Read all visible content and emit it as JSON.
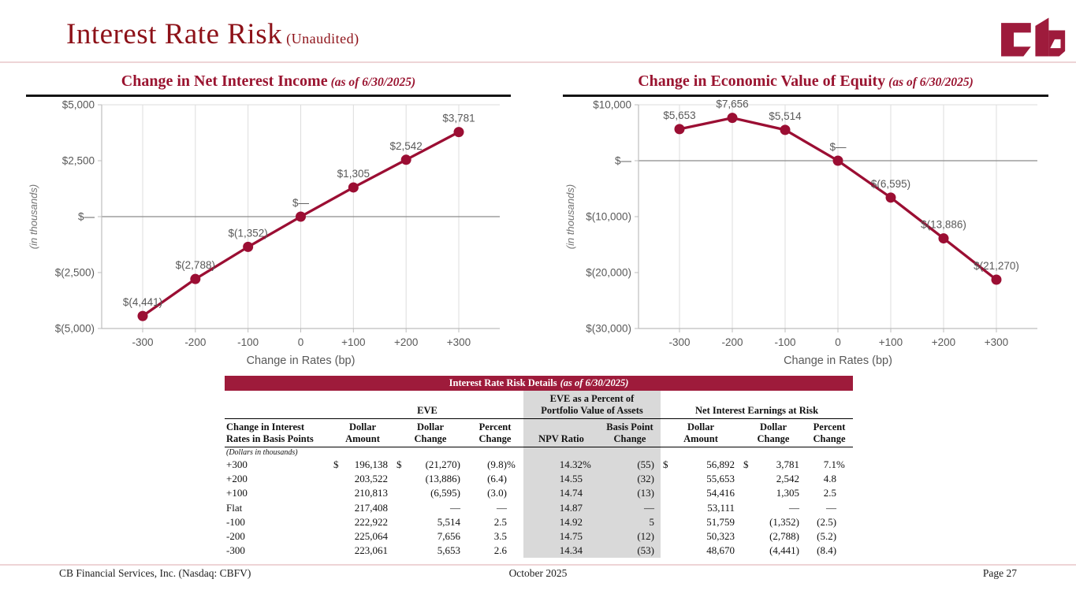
{
  "page": {
    "title": "Interest Rate Risk",
    "title_suffix": "(Unaudited)",
    "logo_name": "cb-monogram"
  },
  "colors": {
    "crimson_line": "#9b0e33",
    "title_red": "#8d1118",
    "chart_title_red": "#9a1430",
    "banner_red": "#9e1b3b",
    "shade_gray": "#d9d9d9",
    "label_gray": "#595959"
  },
  "chart_data": [
    {
      "type": "line",
      "title": "Change in Net Interest Income",
      "title_suffix": "(as of 6/30/2025)",
      "categories": [
        "-300",
        "-200",
        "-100",
        "0",
        "+100",
        "+200",
        "+300"
      ],
      "values": [
        -4441,
        -2788,
        -1352,
        0,
        1305,
        2542,
        3781
      ],
      "point_labels": [
        "$(4,441)",
        "$(2,788)",
        "$(1,352)",
        "$—",
        "$1,305",
        "$2,542",
        "$3,781"
      ],
      "xlabel": "Change in Rates (bp)",
      "ylabel": "(in thousands)",
      "ylim": [
        -5000,
        5000
      ],
      "yticks": [
        {
          "value": 5000,
          "label": "$5,000"
        },
        {
          "value": 2500,
          "label": "$2,500"
        },
        {
          "value": 0,
          "label": "$—"
        },
        {
          "value": -2500,
          "label": "$(2,500)"
        },
        {
          "value": -5000,
          "label": "$(5,000)"
        }
      ],
      "grid": "vertical category gridlines + dark zero line",
      "legend": "none",
      "line_color": "#9b0e33"
    },
    {
      "type": "line",
      "title": "Change in Economic Value of Equity",
      "title_suffix": "(as of 6/30/2025)",
      "categories": [
        "-300",
        "-200",
        "-100",
        "0",
        "+100",
        "+200",
        "+300"
      ],
      "values": [
        5653,
        7656,
        5514,
        0,
        -6595,
        -13886,
        -21270
      ],
      "point_labels": [
        "$5,653",
        "$7,656",
        "$5,514",
        "$—",
        "$(6,595)",
        "$(13,886)",
        "$(21,270)"
      ],
      "xlabel": "Change in Rates (bp)",
      "ylabel": "(in thousands)",
      "ylim": [
        -30000,
        10000
      ],
      "yticks": [
        {
          "value": 10000,
          "label": "$10,000"
        },
        {
          "value": 0,
          "label": "$—"
        },
        {
          "value": -10000,
          "label": "$(10,000)"
        },
        {
          "value": -20000,
          "label": "$(20,000)"
        },
        {
          "value": -30000,
          "label": "$(30,000)"
        }
      ],
      "grid": "vertical category gridlines + dark zero line",
      "legend": "none",
      "line_color": "#9b0e33"
    }
  ],
  "table": {
    "banner": "Interest Rate Risk Details",
    "banner_suffix": "(as of 6/30/2025)",
    "group_headers": [
      {
        "label": "",
        "span": 1,
        "shaded": false
      },
      {
        "label": "EVE",
        "span": 3,
        "shaded": false
      },
      {
        "label": "EVE as a Percent of\nPortfolio Value of Assets",
        "span": 2,
        "shaded": true
      },
      {
        "label": "Net Interest Earnings at Risk",
        "span": 3,
        "shaded": false
      }
    ],
    "col_headers": [
      "Change in Interest\nRates in Basis Points",
      "Dollar\nAmount",
      "Dollar\nChange",
      "Percent\nChange",
      "NPV Ratio",
      "Basis Point\nChange",
      "Dollar\nAmount",
      "Dollar\nChange",
      "Percent\nChange"
    ],
    "note": "(Dollars in thousands)",
    "rows": [
      [
        "+300",
        "$ 196,138",
        "$ (21,270)",
        "(9.8)%",
        "14.32%",
        "(55)",
        "$ 56,892",
        "$ 3,781",
        "7.1 %"
      ],
      [
        "+200",
        "203,522",
        "(13,886)",
        "(6.4)",
        "14.55",
        "(32)",
        "55,653",
        "2,542",
        "4.8"
      ],
      [
        "+100",
        "210,813",
        "(6,595)",
        "(3.0)",
        "14.74",
        "(13)",
        "54,416",
        "1,305",
        "2.5"
      ],
      [
        "Flat",
        "217,408",
        "—",
        "—",
        "14.87",
        "—",
        "53,111",
        "—",
        "—"
      ],
      [
        "-100",
        "222,922",
        "5,514",
        "2.5",
        "14.92",
        "5",
        "51,759",
        "(1,352)",
        "(2.5)"
      ],
      [
        "-200",
        "225,064",
        "7,656",
        "3.5",
        "14.75",
        "(12)",
        "50,323",
        "(2,788)",
        "(5.2)"
      ],
      [
        "-300",
        "223,061",
        "5,653",
        "2.6",
        "14.34",
        "(53)",
        "48,670",
        "(4,441)",
        "(8.4)"
      ]
    ],
    "shaded_columns": [
      4,
      5
    ]
  },
  "footer": {
    "left": "CB Financial Services, Inc. (Nasdaq: CBFV)",
    "center": "October 2025",
    "right": "Page 27"
  }
}
